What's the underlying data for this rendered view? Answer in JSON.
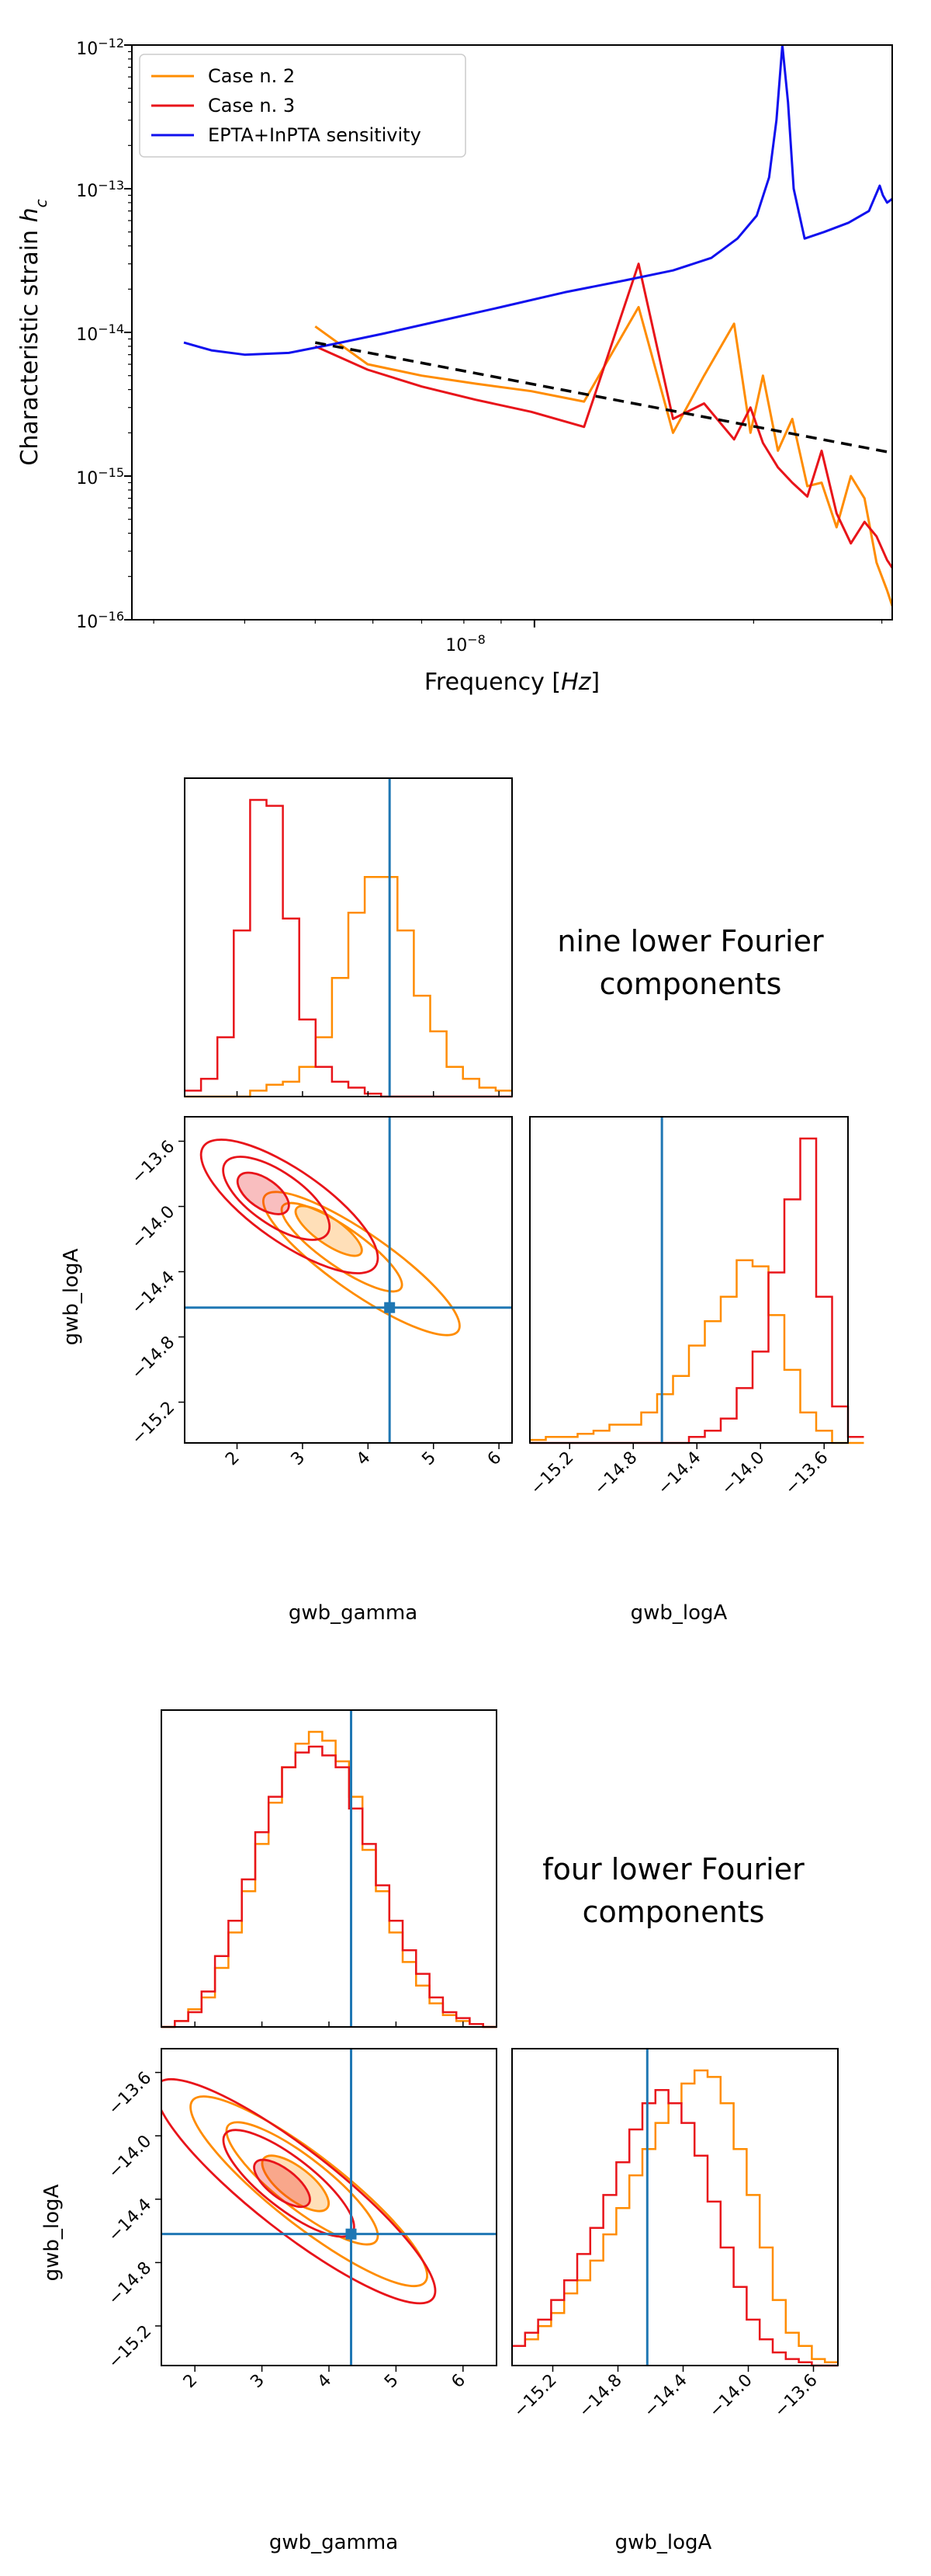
{
  "colors": {
    "case2": "#ff8c00",
    "case3": "#e8141a",
    "sensitivity": "#1010ee",
    "powerlaw": "#000000",
    "truth": "#1f77b4"
  },
  "figure_a": {
    "type": "line",
    "xscale": "log",
    "yscale": "log",
    "xlim": [
      2.8e-09,
      3.1e-08
    ],
    "ylim": [
      1e-16,
      1e-12
    ],
    "xlabel": "Frequency [Hz]",
    "ylabel": "Characteristic strain h_c",
    "x_tick_label": "10^-8",
    "y_tick_labels": [
      "10^-12",
      "10^-13",
      "10^-14",
      "10^-15",
      "10^-16"
    ],
    "legend_position": "top-left",
    "legend": [
      "Case n. 2",
      "Case n. 3",
      "EPTA+InPTA sensitivity"
    ],
    "series": [
      {
        "name": "Case n. 2",
        "color_key": "case2",
        "x": [
          5e-09,
          5.9e-09,
          7e-09,
          8.3e-09,
          9.9e-09,
          1.17e-08,
          1.39e-08,
          1.55e-08,
          1.71e-08,
          1.88e-08,
          1.98e-08,
          2.06e-08,
          2.16e-08,
          2.26e-08,
          2.37e-08,
          2.48e-08,
          2.6e-08,
          2.72e-08,
          2.84e-08,
          2.95e-08,
          3.05e-08,
          3.1e-08
        ],
        "y": [
          1.1e-14,
          6e-15,
          5e-15,
          4.4e-15,
          3.9e-15,
          3.3e-15,
          1.5e-14,
          2e-15,
          5e-15,
          1.15e-14,
          2e-15,
          5e-15,
          1.5e-15,
          2.5e-15,
          8.5e-16,
          9e-16,
          4.4e-16,
          1e-15,
          7e-16,
          2.5e-16,
          1.6e-16,
          1.25e-16
        ]
      },
      {
        "name": "Case n. 3",
        "color_key": "case3",
        "x": [
          5e-09,
          5.9e-09,
          7e-09,
          8.3e-09,
          9.9e-09,
          1.17e-08,
          1.39e-08,
          1.55e-08,
          1.71e-08,
          1.88e-08,
          1.98e-08,
          2.06e-08,
          2.16e-08,
          2.26e-08,
          2.37e-08,
          2.48e-08,
          2.6e-08,
          2.72e-08,
          2.84e-08,
          2.95e-08,
          3.05e-08,
          3.1e-08
        ],
        "y": [
          8e-15,
          5.5e-15,
          4.2e-15,
          3.4e-15,
          2.8e-15,
          2.2e-15,
          3e-14,
          2.5e-15,
          3.2e-15,
          1.8e-15,
          3e-15,
          1.7e-15,
          1.15e-15,
          9e-16,
          7.2e-16,
          1.5e-15,
          5.5e-16,
          3.4e-16,
          4.8e-16,
          3.8e-16,
          2.6e-16,
          2.3e-16
        ]
      },
      {
        "name": "EPTA+InPTA sensitivity",
        "color_key": "sensitivity",
        "x": [
          3.3e-09,
          3.6e-09,
          4e-09,
          4.6e-09,
          5.3e-09,
          6.2e-09,
          7.4e-09,
          9e-09,
          1.1e-08,
          1.33e-08,
          1.55e-08,
          1.75e-08,
          1.9e-08,
          2.02e-08,
          2.1e-08,
          2.15e-08,
          2.19e-08,
          2.23e-08,
          2.27e-08,
          2.35e-08,
          2.5e-08,
          2.7e-08,
          2.88e-08,
          2.98e-08,
          3.01e-08,
          3.05e-08,
          3.1e-08
        ],
        "y": [
          8.5e-15,
          7.5e-15,
          7e-15,
          7.2e-15,
          8.3e-15,
          9.8e-15,
          1.2e-14,
          1.5e-14,
          1.9e-14,
          2.3e-14,
          2.7e-14,
          3.3e-14,
          4.5e-14,
          6.5e-14,
          1.2e-13,
          3e-13,
          1e-12,
          4e-13,
          1e-13,
          4.5e-14,
          5e-14,
          5.8e-14,
          7e-14,
          1.05e-13,
          9e-14,
          8e-14,
          8.5e-14
        ]
      },
      {
        "name": "power-law",
        "color_key": "powerlaw",
        "style": "dashed",
        "x": [
          5e-09,
          3.1e-08
        ],
        "y": [
          8.5e-15,
          1.45e-15
        ]
      }
    ]
  },
  "corner_a": {
    "annotation_line1": "nine lower Fourier",
    "annotation_line2": "components",
    "gamma_label": "gwb_gamma",
    "logA_label": "gwb_logA",
    "gamma_lim": [
      1.2,
      6.2
    ],
    "logA_lim": [
      -15.45,
      -13.45
    ],
    "truth": {
      "gamma": 4.33,
      "logA": -14.62
    },
    "gamma_ticks": [
      2,
      3,
      4,
      5,
      6
    ],
    "gamma_tick_labels": [
      "2",
      "3",
      "4",
      "5",
      "6"
    ],
    "logA_ticks": [
      -15.2,
      -14.8,
      -14.4,
      -14.0,
      -13.6
    ],
    "logA_tick_labels": [
      "−15.2",
      "−14.8",
      "−14.4",
      "−14.0",
      "−13.6"
    ],
    "hist_gamma": {
      "edges_start": 1.2,
      "bin_width": 0.25,
      "case2": [
        0,
        0,
        0,
        0,
        0.02,
        0.04,
        0.05,
        0.1,
        0.2,
        0.4,
        0.62,
        0.74,
        0.74,
        0.56,
        0.34,
        0.22,
        0.1,
        0.06,
        0.03,
        0.02
      ],
      "case3": [
        0.02,
        0.06,
        0.2,
        0.56,
        1.0,
        0.98,
        0.6,
        0.26,
        0.1,
        0.05,
        0.03,
        0.01,
        0,
        0,
        0,
        0,
        0,
        0,
        0,
        0
      ]
    },
    "hist_logA": {
      "edges_start": -15.45,
      "bin_width": 0.1,
      "case2": [
        0.01,
        0.02,
        0.02,
        0.03,
        0.04,
        0.06,
        0.06,
        0.1,
        0.16,
        0.22,
        0.32,
        0.4,
        0.48,
        0.6,
        0.58,
        0.42,
        0.24,
        0.1,
        0.04,
        0,
        0
      ],
      "case3": [
        0,
        0,
        0,
        0,
        0,
        0,
        0,
        0,
        0,
        0,
        0.02,
        0.04,
        0.08,
        0.18,
        0.3,
        0.56,
        0.8,
        1.0,
        0.48,
        0.12,
        0.02
      ]
    },
    "contours_case3": [
      {
        "gamma": 2.4,
        "logA": -13.92,
        "a": 0.45,
        "b": 0.09,
        "fill": true
      },
      {
        "gamma": 2.6,
        "logA": -13.95,
        "a": 0.95,
        "b": 0.16
      },
      {
        "gamma": 2.8,
        "logA": -14.0,
        "a": 1.6,
        "b": 0.22
      }
    ],
    "contours_case2": [
      {
        "gamma": 3.4,
        "logA": -14.15,
        "a": 0.6,
        "b": 0.08,
        "fill": true
      },
      {
        "gamma": 3.6,
        "logA": -14.25,
        "a": 1.1,
        "b": 0.12
      },
      {
        "gamma": 3.9,
        "logA": -14.35,
        "a": 1.8,
        "b": 0.18
      }
    ],
    "contour_slope": -0.28
  },
  "corner_b": {
    "annotation_line1": "four lower Fourier",
    "annotation_line2": "components",
    "gamma_label": "gwb_gamma",
    "logA_label": "gwb_logA",
    "gamma_lim": [
      1.5,
      6.5
    ],
    "logA_lim": [
      -15.45,
      -13.45
    ],
    "truth": {
      "gamma": 4.33,
      "logA": -14.62
    },
    "gamma_ticks": [
      2,
      3,
      4,
      5,
      6
    ],
    "gamma_tick_labels": [
      "2",
      "3",
      "4",
      "5",
      "6"
    ],
    "logA_ticks": [
      -15.2,
      -14.8,
      -14.4,
      -14.0,
      -13.6
    ],
    "logA_tick_labels": [
      "−15.2",
      "−14.8",
      "−14.4",
      "−14.0",
      "−13.6"
    ],
    "hist_gamma": {
      "edges_start": 1.5,
      "bin_width": 0.2,
      "case2": [
        0,
        0.02,
        0.06,
        0.1,
        0.2,
        0.32,
        0.46,
        0.62,
        0.76,
        0.88,
        0.96,
        1.0,
        0.97,
        0.9,
        0.78,
        0.6,
        0.46,
        0.32,
        0.22,
        0.14,
        0.08,
        0.04,
        0.02,
        0.01,
        0
      ],
      "case3": [
        0,
        0.02,
        0.05,
        0.12,
        0.24,
        0.36,
        0.5,
        0.66,
        0.78,
        0.88,
        0.93,
        0.95,
        0.92,
        0.88,
        0.74,
        0.62,
        0.48,
        0.36,
        0.26,
        0.18,
        0.1,
        0.05,
        0.03,
        0.01,
        0
      ]
    },
    "hist_logA": {
      "edges_start": -15.45,
      "bin_width": 0.08,
      "case2": [
        0.06,
        0.08,
        0.12,
        0.16,
        0.22,
        0.26,
        0.32,
        0.4,
        0.48,
        0.58,
        0.66,
        0.74,
        0.8,
        0.86,
        0.9,
        0.88,
        0.8,
        0.66,
        0.52,
        0.36,
        0.2,
        0.1,
        0.06,
        0.02,
        0.01
      ],
      "case3": [
        0.06,
        0.1,
        0.14,
        0.2,
        0.26,
        0.34,
        0.42,
        0.52,
        0.62,
        0.72,
        0.8,
        0.84,
        0.8,
        0.74,
        0.64,
        0.5,
        0.36,
        0.24,
        0.14,
        0.08,
        0.04,
        0.02,
        0.01,
        0,
        0
      ]
    },
    "contours_case3": [
      {
        "gamma": 3.3,
        "logA": -14.3,
        "a": 0.5,
        "b": 0.09,
        "fill": true
      },
      {
        "gamma": 3.4,
        "logA": -14.3,
        "a": 1.2,
        "b": 0.16
      },
      {
        "gamma": 3.5,
        "logA": -14.35,
        "a": 2.6,
        "b": 0.26
      }
    ],
    "contours_case2": [
      {
        "gamma": 3.5,
        "logA": -14.3,
        "a": 0.6,
        "b": 0.1,
        "fill": true
      },
      {
        "gamma": 3.6,
        "logA": -14.3,
        "a": 1.4,
        "b": 0.16
      },
      {
        "gamma": 3.7,
        "logA": -14.35,
        "a": 2.2,
        "b": 0.22
      }
    ],
    "contour_slope": -0.33
  }
}
